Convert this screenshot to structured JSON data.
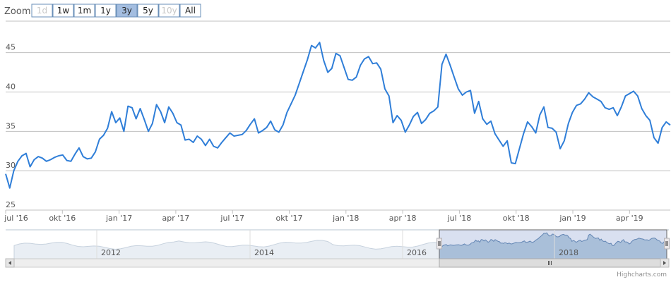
{
  "zoom": {
    "label": "Zoom",
    "buttons": [
      {
        "label": "1d",
        "state": "disabled"
      },
      {
        "label": "1w",
        "state": "normal"
      },
      {
        "label": "1m",
        "state": "normal"
      },
      {
        "label": "1y",
        "state": "normal"
      },
      {
        "label": "3y",
        "state": "active"
      },
      {
        "label": "5y",
        "state": "normal"
      },
      {
        "label": "10y",
        "state": "disabled"
      },
      {
        "label": "All",
        "state": "normal"
      }
    ]
  },
  "credit": "Highcharts.com",
  "colors": {
    "series": "#2f7ed8",
    "grid": "#c0c0c0",
    "navigator_fill": "#e9eef4",
    "navigator_line": "#c7d2de",
    "selection_fill": "#a9bfd9",
    "selection_line": "#6285b3"
  },
  "chart_data": {
    "type": "line",
    "title": "",
    "xlabel": "",
    "ylabel": "",
    "ylim": [
      25,
      49
    ],
    "yticks": [
      25,
      30,
      35,
      40,
      45
    ],
    "grid": true,
    "legend": "none",
    "xticks": [
      "jul '16",
      "okt '16",
      "jan '17",
      "apr '17",
      "jul '17",
      "okt '17",
      "jan '18",
      "apr '18",
      "jul '18",
      "okt '18",
      "jan '19",
      "apr '19"
    ],
    "series": [
      {
        "values": [
          29.6,
          27.8,
          30.0,
          31.2,
          31.9,
          32.2,
          30.5,
          31.4,
          31.8,
          31.6,
          31.2,
          31.4,
          31.7,
          31.9,
          32.0,
          31.3,
          31.2,
          32.1,
          32.9,
          31.8,
          31.5,
          31.6,
          32.4,
          34.0,
          34.5,
          35.4,
          37.5,
          36.1,
          36.7,
          35.0,
          38.2,
          38.0,
          36.6,
          37.9,
          36.5,
          35.0,
          36.0,
          38.4,
          37.5,
          36.1,
          38.1,
          37.3,
          36.1,
          35.8,
          33.9,
          34.0,
          33.6,
          34.4,
          34.0,
          33.2,
          34.0,
          33.1,
          32.9,
          33.6,
          34.2,
          34.8,
          34.4,
          34.5,
          34.6,
          35.1,
          35.9,
          36.6,
          34.8,
          35.1,
          35.5,
          36.3,
          35.2,
          34.9,
          35.8,
          37.4,
          38.5,
          39.6,
          41.1,
          42.6,
          44.1,
          45.9,
          45.6,
          46.3,
          44.0,
          42.5,
          43.0,
          44.9,
          44.6,
          43.1,
          41.6,
          41.5,
          41.9,
          43.4,
          44.2,
          44.5,
          43.6,
          43.7,
          42.9,
          40.4,
          39.5,
          36.1,
          37.0,
          36.4,
          34.9,
          35.8,
          36.9,
          37.4,
          36.0,
          36.5,
          37.3,
          37.6,
          38.1,
          43.5,
          44.8,
          43.4,
          41.9,
          40.4,
          39.6,
          40.0,
          40.2,
          37.3,
          38.8,
          36.6,
          35.9,
          36.3,
          34.7,
          33.9,
          33.1,
          33.8,
          31.0,
          30.9,
          32.8,
          34.7,
          36.2,
          35.6,
          34.8,
          37.1,
          38.1,
          35.5,
          35.4,
          34.9,
          32.8,
          33.8,
          36.0,
          37.4,
          38.3,
          38.5,
          39.1,
          39.9,
          39.4,
          39.1,
          38.8,
          38.0,
          37.8,
          38.0,
          37.0,
          38.1,
          39.5,
          39.8,
          40.1,
          39.5,
          37.9,
          37.0,
          36.4,
          34.2,
          33.5,
          35.5,
          36.2,
          35.8
        ]
      }
    ],
    "navigator": {
      "xticks": [
        "2012",
        "2014",
        "2016",
        "2018"
      ]
    }
  }
}
